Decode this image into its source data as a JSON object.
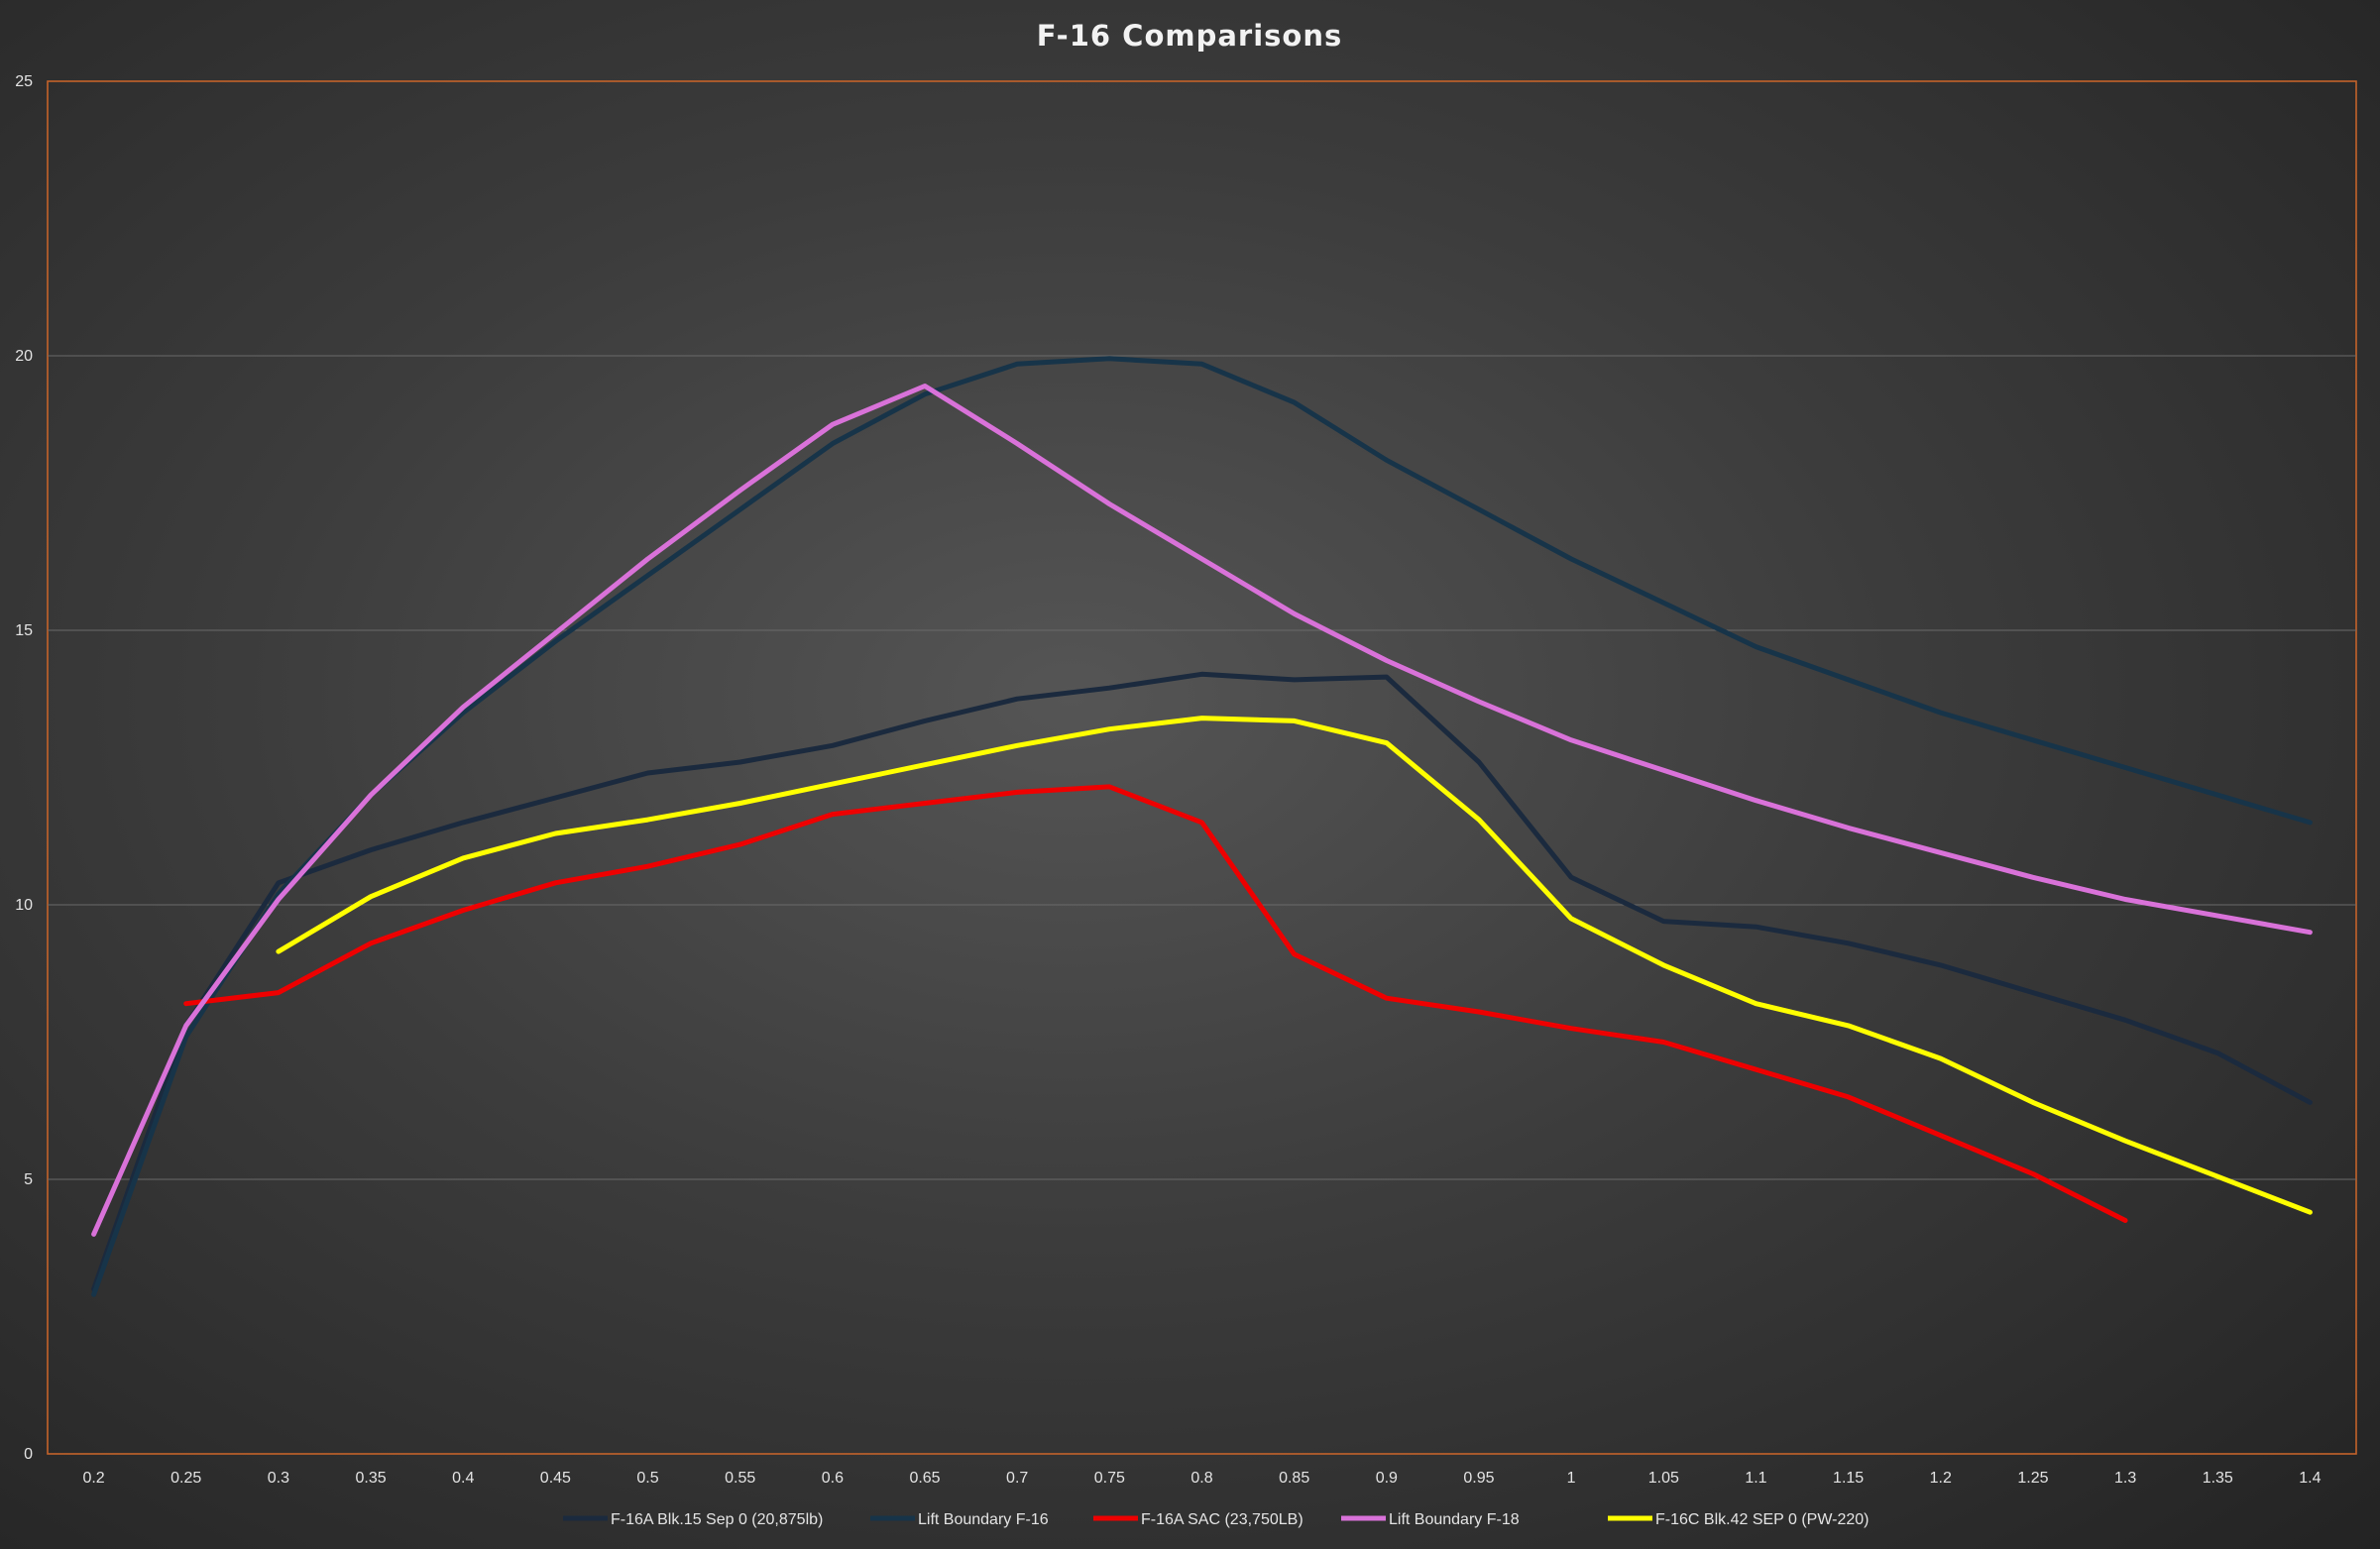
{
  "chart_data": {
    "type": "line",
    "title": "F-16 Comparisons",
    "xlabel": "",
    "ylabel": "",
    "categories": [
      "0.2",
      "0.25",
      "0.3",
      "0.35",
      "0.4",
      "0.45",
      "0.5",
      "0.55",
      "0.6",
      "0.65",
      "0.7",
      "0.75",
      "0.8",
      "0.85",
      "0.9",
      "0.95",
      "1",
      "1.05",
      "1.1",
      "1.15",
      "1.2",
      "1.25",
      "1.3",
      "1.35",
      "1.4"
    ],
    "ylim": [
      0,
      25
    ],
    "yticks": [
      "0",
      "5",
      "10",
      "15",
      "20",
      "25"
    ],
    "grid": "horizontal",
    "legend_position": "bottom",
    "series": [
      {
        "name": "F-16A Blk.15 Sep 0 (20,875lb)",
        "color": "#1b2a3e",
        "values": [
          3.0,
          7.8,
          10.4,
          11.0,
          11.5,
          11.95,
          12.4,
          12.6,
          12.9,
          13.35,
          13.75,
          13.95,
          14.2,
          14.1,
          14.15,
          12.6,
          10.5,
          9.7,
          9.6,
          9.3,
          8.9,
          8.4,
          7.9,
          7.3,
          6.4
        ]
      },
      {
        "name": "Lift Boundary F-16",
        "color": "#173449",
        "values": [
          2.9,
          7.6,
          10.2,
          12.0,
          13.5,
          14.8,
          16.0,
          17.2,
          18.4,
          19.3,
          19.85,
          19.95,
          19.85,
          19.15,
          18.1,
          17.2,
          16.3,
          15.5,
          14.7,
          14.1,
          13.5,
          13.0,
          12.5,
          12.0,
          11.5
        ]
      },
      {
        "name": "F-16A SAC (23,750LB)",
        "color": "#ee0000",
        "values": [
          null,
          8.2,
          8.4,
          9.3,
          9.9,
          10.4,
          10.7,
          11.1,
          11.65,
          11.85,
          12.05,
          12.15,
          11.5,
          9.1,
          8.3,
          8.05,
          7.75,
          7.5,
          7.0,
          6.5,
          5.8,
          5.1,
          4.25,
          null,
          null
        ]
      },
      {
        "name": "Lift Boundary F-18",
        "color": "#d972d9",
        "values": [
          4.0,
          7.8,
          10.1,
          12.0,
          13.6,
          14.95,
          16.3,
          17.55,
          18.75,
          19.45,
          18.4,
          17.3,
          16.3,
          15.3,
          14.45,
          13.7,
          13.0,
          12.45,
          11.9,
          11.4,
          10.95,
          10.5,
          10.1,
          9.8,
          9.5
        ]
      },
      {
        "name": "F-16C Blk.42 SEP 0 (PW-220)",
        "color": "#ffff00",
        "values": [
          null,
          null,
          9.15,
          10.15,
          10.85,
          11.3,
          11.55,
          11.85,
          12.2,
          12.55,
          12.9,
          13.2,
          13.4,
          13.35,
          12.95,
          11.55,
          9.75,
          8.9,
          8.2,
          7.8,
          7.2,
          6.4,
          5.7,
          5.05,
          4.4
        ]
      }
    ]
  }
}
